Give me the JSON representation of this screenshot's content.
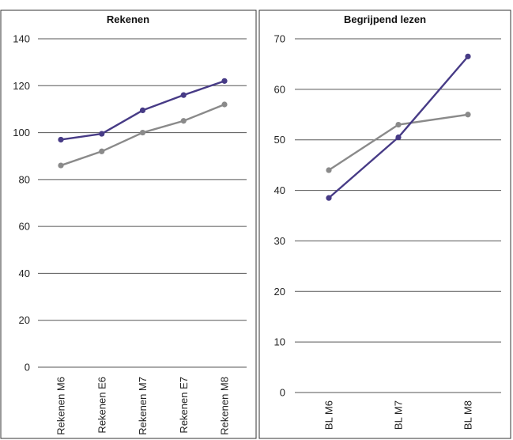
{
  "chart_data": [
    {
      "type": "line",
      "title": "Rekenen",
      "categories": [
        "Rekenen M6",
        "Rekenen E6",
        "Rekenen M7",
        "Rekenen E7",
        "Rekenen M8"
      ],
      "ylim": [
        0,
        140
      ],
      "yticks": [
        0,
        20,
        40,
        60,
        80,
        100,
        120,
        140
      ],
      "grid": true,
      "series": [
        {
          "color": "#473b86",
          "values": [
            97,
            99.5,
            109.5,
            116,
            122
          ]
        },
        {
          "color": "#8a8a8a",
          "values": [
            86,
            92,
            100,
            105,
            112
          ]
        }
      ]
    },
    {
      "type": "line",
      "title": "Begrijpend lezen",
      "categories": [
        "BL M6",
        "BL M7",
        "BL M8"
      ],
      "ylim": [
        0,
        70
      ],
      "yticks": [
        0,
        10,
        20,
        30,
        40,
        50,
        60,
        70
      ],
      "grid": true,
      "series": [
        {
          "color": "#473b86",
          "values": [
            38.5,
            50.5,
            66.5
          ]
        },
        {
          "color": "#8a8a8a",
          "values": [
            44,
            53,
            55
          ]
        }
      ]
    }
  ]
}
